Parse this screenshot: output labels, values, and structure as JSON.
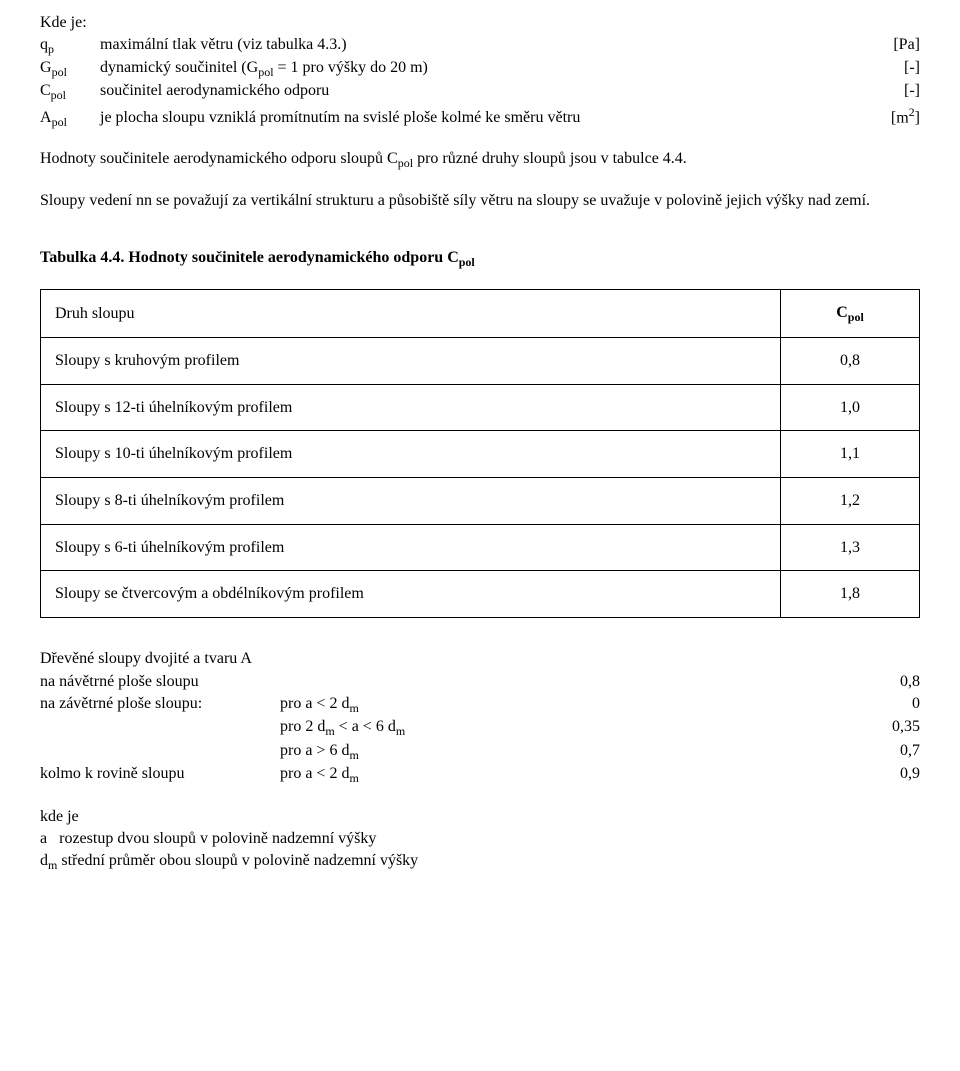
{
  "intro_label": "Kde je:",
  "defs": {
    "qp": {
      "sym_html": "q<sub class=\"sub\">p</sub>",
      "text": "maximální tlak větru (viz tabulka 4.3.)",
      "unit": "[Pa]"
    },
    "Gpol": {
      "sym_html": "G<sub class=\"sub\">pol</sub>",
      "text_html": "dynamický součinitel (G<sub class=\"sub\">pol</sub> = 1 pro výšky do 20 m)",
      "unit": "[-]"
    },
    "Cpol": {
      "sym_html": "C<sub class=\"sub\">pol</sub>",
      "text": "součinitel aerodynamického odporu",
      "unit": "[-]"
    },
    "Apol": {
      "sym_html": "A<sub class=\"sub\">pol</sub>",
      "text": "je plocha sloupu vzniklá promítnutím na svislé ploše kolmé ke směru větru",
      "unit_html": "[m<sup class=\"sup\">2</sup>]"
    }
  },
  "para1_html": "Hodnoty součinitele aerodynamického odporu sloupů C<sub class=\"sub\">pol</sub> pro různé druhy sloupů jsou v tabulce 4.4.",
  "para2": "Sloupy vedení nn se považují za vertikální strukturu a působiště síly větru na sloupy se uvažuje v polovině jejich výšky nad zemí.",
  "table_caption_html": "Tabulka 4.4. Hodnoty součinitele aerodynamického odporu C<sub class=\"sub\">pol</sub>",
  "table": {
    "header_col1": "Druh sloupu",
    "header_col2_html": "C<sub class=\"sub\">pol</sub>",
    "rows": [
      {
        "label": "Sloupy s kruhovým profilem",
        "value": "0,8"
      },
      {
        "label": "Sloupy s 12-ti úhelníkovým profilem",
        "value": "1,0"
      },
      {
        "label": "Sloupy s 10-ti úhelníkovým profilem",
        "value": "1,1"
      },
      {
        "label": "Sloupy s 8-ti úhelníkovým profilem",
        "value": "1,2"
      },
      {
        "label": "Sloupy s 6-ti úhelníkovým profilem",
        "value": "1,3"
      },
      {
        "label": "Sloupy se čtvercovým a obdélníkovým profilem",
        "value": "1,8"
      }
    ]
  },
  "wood": {
    "title": "Dřevěné sloupy dvojité a tvaru A",
    "rows": [
      {
        "label": "na návětrné ploše sloupu",
        "cond": "",
        "value": "0,8"
      },
      {
        "label": "na závětrné ploše sloupu:",
        "cond_html": "pro  a < 2 d<sub class=\"sub\">m</sub>",
        "value": "0"
      },
      {
        "label": "",
        "cond_html": "pro  2 d<sub class=\"sub\">m</sub> < a < 6 d<sub class=\"sub\">m</sub>",
        "value": "0,35"
      },
      {
        "label": "",
        "cond_html": "pro  a > 6 d<sub class=\"sub\">m</sub>",
        "value": "0,7"
      },
      {
        "label": "kolmo k rovině sloupu",
        "cond_html": "pro a <  2 d<sub class=\"sub\">m</sub>",
        "value": "0,9"
      }
    ]
  },
  "where_label": "kde je",
  "where_rows": [
    {
      "sym": "a",
      "text": " rozestup dvou sloupů v polovině nadzemní výšky"
    },
    {
      "sym_html": "d<sub class=\"sub\">m</sub>",
      "text": " střední průměr obou sloupů v polovině nadzemní výšky"
    }
  ]
}
